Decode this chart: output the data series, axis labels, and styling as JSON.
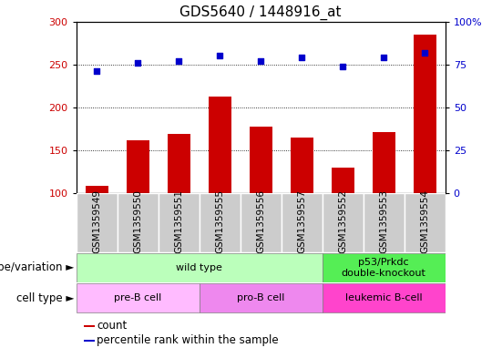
{
  "title": "GDS5640 / 1448916_at",
  "samples": [
    "GSM1359549",
    "GSM1359550",
    "GSM1359551",
    "GSM1359555",
    "GSM1359556",
    "GSM1359557",
    "GSM1359552",
    "GSM1359553",
    "GSM1359554"
  ],
  "counts": [
    109,
    162,
    169,
    213,
    178,
    165,
    130,
    171,
    285
  ],
  "percentiles": [
    71,
    76,
    77,
    80,
    77,
    79,
    74,
    79,
    82
  ],
  "count_base": 100,
  "ylim_left": [
    100,
    300
  ],
  "ylim_right": [
    0,
    100
  ],
  "yticks_left": [
    100,
    150,
    200,
    250,
    300
  ],
  "yticks_right": [
    0,
    25,
    50,
    75,
    100
  ],
  "bar_color": "#cc0000",
  "dot_color": "#0000cc",
  "dot_size": 18,
  "bar_width": 0.55,
  "genotype_groups": [
    {
      "label": "wild type",
      "start": 0,
      "end": 6,
      "color": "#bbffbb"
    },
    {
      "label": "p53/Prkdc\ndouble-knockout",
      "start": 6,
      "end": 9,
      "color": "#55ee55"
    }
  ],
  "cell_type_groups": [
    {
      "label": "pre-B cell",
      "start": 0,
      "end": 3,
      "color": "#ffbbff"
    },
    {
      "label": "pro-B cell",
      "start": 3,
      "end": 6,
      "color": "#ee88ee"
    },
    {
      "label": "leukemic B-cell",
      "start": 6,
      "end": 9,
      "color": "#ff44cc"
    }
  ],
  "sample_box_color": "#cccccc",
  "legend_items": [
    {
      "color": "#cc0000",
      "label": "count"
    },
    {
      "color": "#0000cc",
      "label": "percentile rank within the sample"
    }
  ],
  "title_fontsize": 11,
  "tick_fontsize": 8,
  "label_fontsize": 8.5,
  "sample_fontsize": 7.5
}
